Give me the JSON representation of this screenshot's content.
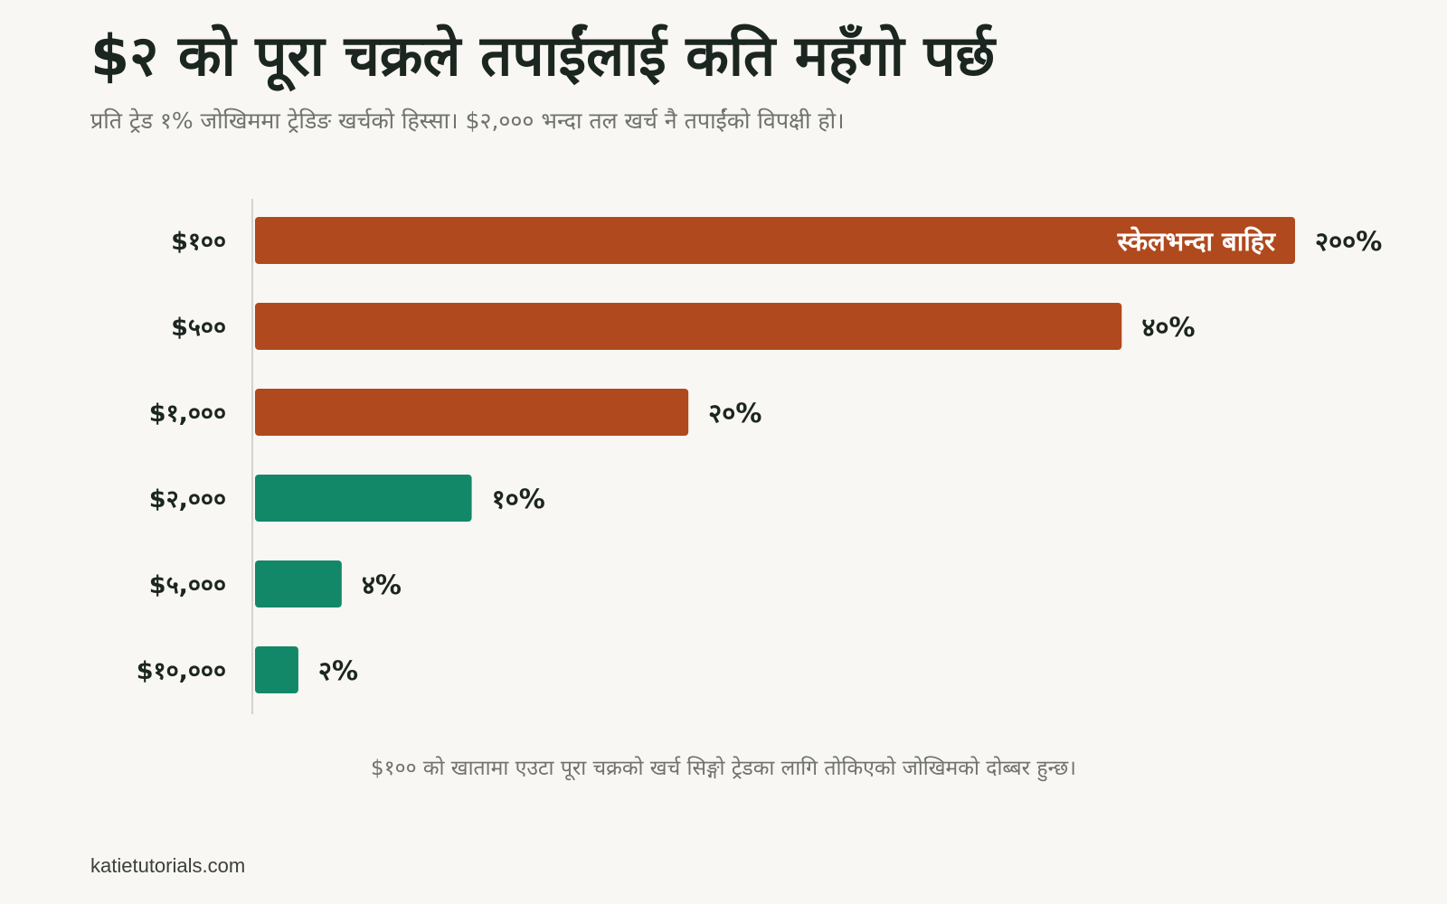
{
  "title": "$२ को पूरा चक्रले तपाईंलाई कति महँगो पर्छ",
  "subtitle": "प्रति ट्रेड १% जोखिममा ट्रेडिङ खर्चको हिस्सा। $२,००० भन्दा तल खर्च नै तपाईंको विपक्षी हो।",
  "note": "$१०० को खातामा एउटा पूरा चक्रको खर्च सिङ्गो ट्रेडका लागि तोकिएको जोखिमको दोब्बर हुन्छ।",
  "source": "katietutorials.com",
  "colors": {
    "above_threshold": "#b0491d",
    "below_threshold": "#138868",
    "label_text": "#1c2621"
  },
  "chart_data": {
    "type": "bar",
    "orientation": "horizontal",
    "title": "$२ को पूरा चक्रले तपाईंलाई कति महँगो पर्छ",
    "categories": [
      "$१००",
      "$५००",
      "$१,०००",
      "$२,०००",
      "$५,०००",
      "$१०,०००"
    ],
    "values": [
      200,
      40,
      20,
      10,
      4,
      2
    ],
    "value_labels": [
      "२००%",
      "४०%",
      "२०%",
      "१०%",
      "४%",
      "२%"
    ],
    "xlim": [
      0,
      48
    ],
    "clipped": [
      true,
      false,
      false,
      false,
      false,
      false
    ],
    "clipped_label": "स्केलभन्दा बाहिर",
    "series_colors": [
      "#b0491d",
      "#b0491d",
      "#b0491d",
      "#138868",
      "#138868",
      "#138868"
    ],
    "grid": false,
    "legend": "none"
  }
}
